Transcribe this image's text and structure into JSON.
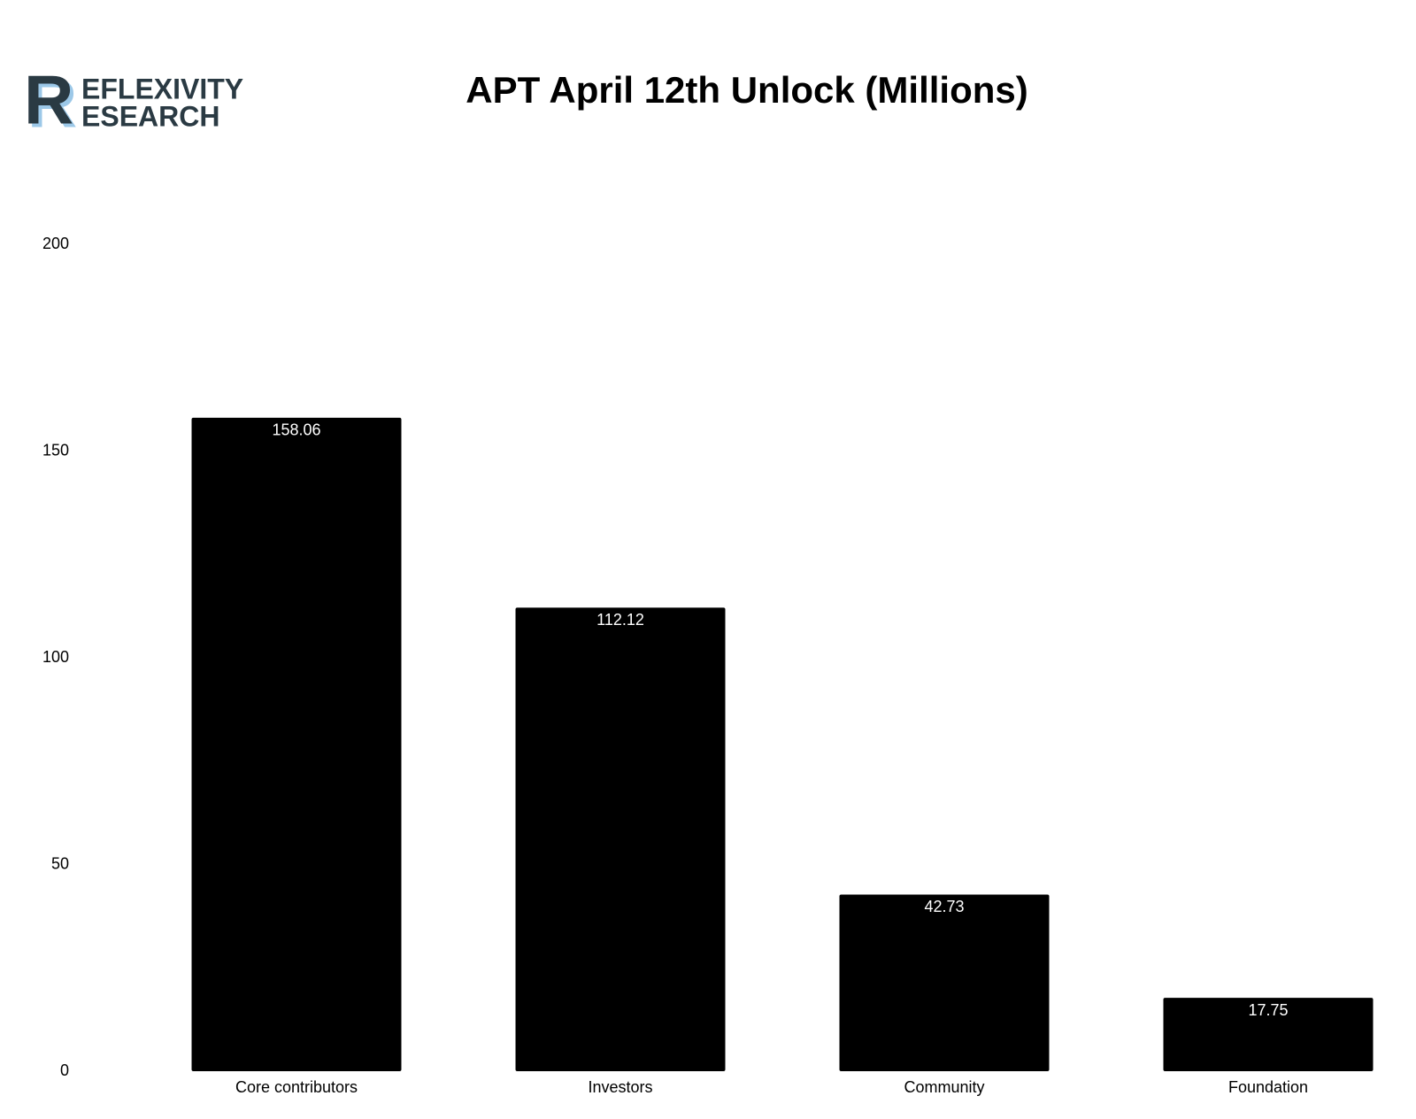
{
  "logo": {
    "initial": "R",
    "line1": "EFLEXIVITY",
    "line2": "ESEARCH"
  },
  "chart_data": {
    "type": "bar",
    "title": "APT April 12th Unlock (Millions)",
    "categories": [
      "Core contributors",
      "Investors",
      "Community",
      "Foundation"
    ],
    "values": [
      158.06,
      112.12,
      42.73,
      17.75
    ],
    "color": "#000000",
    "ylim": [
      0,
      200
    ],
    "yticks": [
      0,
      50,
      100,
      150,
      200
    ],
    "grid": false
  }
}
